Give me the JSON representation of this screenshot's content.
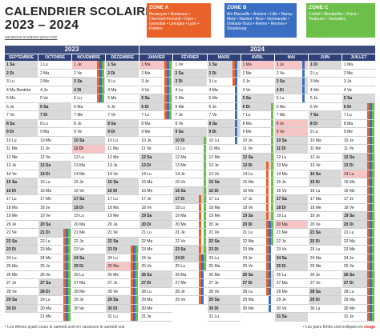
{
  "title_line1": "CALENDRIER SCOLAIRE",
  "title_line2": "2023 – 2024",
  "website": "vacances-scolaires-gouv.com",
  "zones": [
    {
      "label": "ZONE A",
      "cities": "Besançon • Bordeaux • Clermont-Ferrand • Dijon • Grenoble • Limoges • Lyon • Poitiers",
      "color": "#e8622a"
    },
    {
      "label": "ZONE B",
      "cities": "Aix-Marseille • Amiens • Lille • Nancy-Metz • Nantes • Nice • Normandie • Orléans-Tours • Reims • Rennes • Strasbourg",
      "color": "#3a6fc4"
    },
    {
      "label": "ZONE C",
      "cities": "Créteil • Montpellier • Paris • Toulouse • Versailles",
      "color": "#6cc04a"
    }
  ],
  "year_left": "2023",
  "year_right": "2024",
  "months": [
    {
      "name": "SEPTEMBRE",
      "start": 5,
      "days": 30
    },
    {
      "name": "OCTOBRE",
      "start": 0,
      "days": 31
    },
    {
      "name": "NOVEMBRE",
      "start": 3,
      "days": 30
    },
    {
      "name": "DÉCEMBRE",
      "start": 5,
      "days": 31
    },
    {
      "name": "JANVIER",
      "start": 1,
      "days": 31
    },
    {
      "name": "FÉVRIER",
      "start": 4,
      "days": 29
    },
    {
      "name": "MARS",
      "start": 5,
      "days": 31
    },
    {
      "name": "AVRIL",
      "start": 1,
      "days": 30
    },
    {
      "name": "MAI",
      "start": 3,
      "days": 31
    },
    {
      "name": "JUIN",
      "start": 6,
      "days": 30
    },
    {
      "name": "JUILLET",
      "start": 1,
      "days": 31
    }
  ],
  "day_abbr": [
    "Lu",
    "Ma",
    "Me",
    "Je",
    "Ve",
    "Sa",
    "Di"
  ],
  "holidays": [
    "NOVEMBRE-1",
    "NOVEMBRE-11",
    "DÉCEMBRE-25",
    "JANVIER-1",
    "AVRIL-1",
    "MAI-1",
    "MAI-8",
    "MAI-9",
    "MAI-20",
    "JUILLET-14"
  ],
  "rentree_label": "Rentrée",
  "footer_left": "• Les élèves ayant cours le samedi sont en vacances le samedi soir",
  "footer_right_prefix": "• Les jours fériés sont indiqués en",
  "footer_right_red": "rouge"
}
